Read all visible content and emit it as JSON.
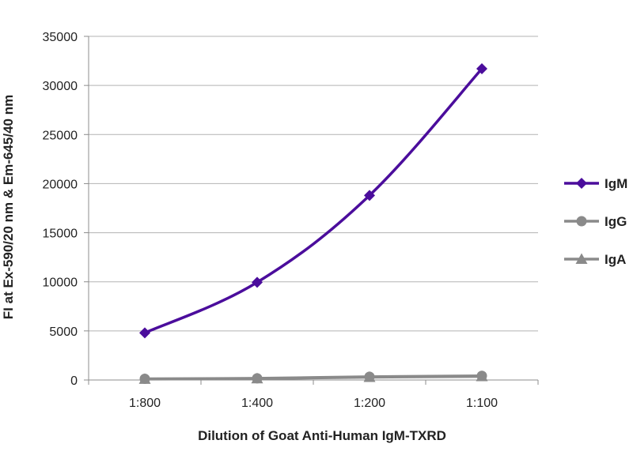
{
  "chart_data": {
    "type": "line",
    "categories": [
      "1:800",
      "1:400",
      "1:200",
      "1:100"
    ],
    "series": [
      {
        "name": "IgM",
        "values": [
          4800,
          9950,
          18800,
          31700
        ],
        "color": "#4b0d9c",
        "marker": "diamond"
      },
      {
        "name": "IgG",
        "values": [
          120,
          170,
          330,
          420
        ],
        "color": "#8a8a8a",
        "marker": "circle"
      },
      {
        "name": "IgA",
        "values": [
          90,
          140,
          280,
          360
        ],
        "color": "#8a8a8a",
        "marker": "triangle"
      }
    ],
    "title": "",
    "xlabel": "Dilution of Goat Anti-Human IgM-TXRD",
    "ylabel": "FI at Ex-590/20 nm & Em-645/40 nm",
    "ylim": [
      0,
      35000
    ],
    "yticks": [
      0,
      5000,
      10000,
      15000,
      20000,
      25000,
      30000,
      35000
    ],
    "grid": true,
    "legend": "right"
  }
}
